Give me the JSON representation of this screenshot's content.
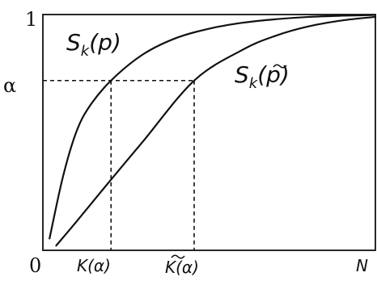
{
  "chart_data": {
    "type": "line",
    "title": "",
    "xlabel": "",
    "ylabel": "",
    "x_ticks": {
      "origin": "0",
      "k_alpha": "K(α)",
      "k_tilde_alpha": "K(α)",
      "n": "N"
    },
    "y_ticks": {
      "one": "1",
      "alpha": "α"
    },
    "xlim": [
      0,
      1
    ],
    "ylim": [
      0,
      1
    ],
    "alpha_value": 0.72,
    "k_alpha_value": 0.205,
    "k_tilde_alpha_value": 0.455,
    "series": [
      {
        "name": "Sk(p)",
        "label_main": "S",
        "label_sub": "k",
        "label_arg": "(p)",
        "x": [
          0.02,
          0.06,
          0.1,
          0.14,
          0.205,
          0.3,
          0.4,
          0.5,
          0.6,
          0.7,
          0.8,
          0.9,
          1.0
        ],
        "y": [
          0.05,
          0.31,
          0.5,
          0.61,
          0.72,
          0.83,
          0.9,
          0.94,
          0.965,
          0.98,
          0.99,
          0.995,
          0.998
        ]
      },
      {
        "name": "Sk(p̃)",
        "label_main": "S",
        "label_sub": "k",
        "label_arg": "(p)",
        "x": [
          0.04,
          0.1,
          0.205,
          0.3,
          0.455,
          0.6,
          0.7,
          0.8,
          0.9,
          1.0
        ],
        "y": [
          0.02,
          0.12,
          0.3,
          0.46,
          0.72,
          0.85,
          0.91,
          0.95,
          0.975,
          0.99
        ]
      }
    ],
    "grid": false,
    "legend": "none"
  }
}
